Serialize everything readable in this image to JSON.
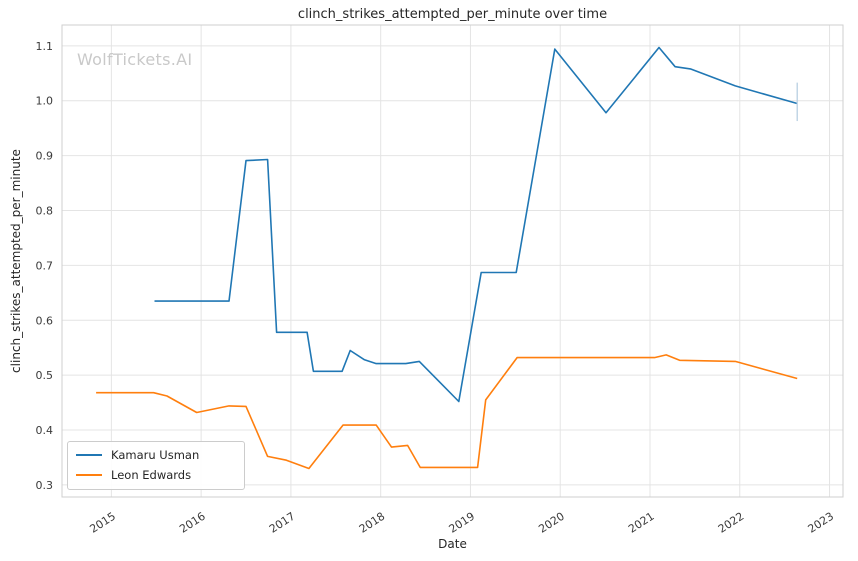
{
  "watermark": "WolfTickets.AI",
  "chart_data": {
    "type": "line",
    "title": "clinch_strikes_attempted_per_minute over time",
    "xlabel": "Date",
    "ylabel": "clinch_strikes_attempted_per_minute",
    "xlim": [
      2014.45,
      2023.15
    ],
    "ylim": [
      0.278,
      1.138
    ],
    "xticks": [
      2015,
      2016,
      2017,
      2018,
      2019,
      2020,
      2021,
      2022,
      2023
    ],
    "yticks": [
      0.3,
      0.4,
      0.5,
      0.6,
      0.7,
      0.8,
      0.9,
      1.0,
      1.1
    ],
    "grid": true,
    "grid_color": "#e4e4e4",
    "border_color": "#cfcfcf",
    "legend_position": "lower left",
    "series": [
      {
        "name": "Kamaru Usman",
        "color": "#2077b4",
        "points": [
          [
            2015.48,
            0.635
          ],
          [
            2016.31,
            0.635
          ],
          [
            2016.5,
            0.891
          ],
          [
            2016.74,
            0.893
          ],
          [
            2016.84,
            0.578
          ],
          [
            2017.18,
            0.578
          ],
          [
            2017.25,
            0.507
          ],
          [
            2017.57,
            0.507
          ],
          [
            2017.66,
            0.545
          ],
          [
            2017.82,
            0.528
          ],
          [
            2017.95,
            0.521
          ],
          [
            2018.28,
            0.521
          ],
          [
            2018.43,
            0.525
          ],
          [
            2018.87,
            0.452
          ],
          [
            2019.12,
            0.687
          ],
          [
            2019.51,
            0.687
          ],
          [
            2019.94,
            1.094
          ],
          [
            2020.51,
            0.978
          ],
          [
            2021.1,
            1.097
          ],
          [
            2021.28,
            1.062
          ],
          [
            2021.45,
            1.058
          ],
          [
            2021.95,
            1.027
          ],
          [
            2022.64,
            0.995
          ]
        ]
      },
      {
        "name": "Leon Edwards",
        "color": "#ff7f0e",
        "points": [
          [
            2014.83,
            0.468
          ],
          [
            2015.47,
            0.468
          ],
          [
            2015.62,
            0.462
          ],
          [
            2015.95,
            0.432
          ],
          [
            2016.31,
            0.444
          ],
          [
            2016.5,
            0.443
          ],
          [
            2016.74,
            0.352
          ],
          [
            2016.95,
            0.345
          ],
          [
            2017.2,
            0.33
          ],
          [
            2017.58,
            0.409
          ],
          [
            2017.95,
            0.409
          ],
          [
            2018.12,
            0.369
          ],
          [
            2018.3,
            0.372
          ],
          [
            2018.44,
            0.332
          ],
          [
            2019.08,
            0.332
          ],
          [
            2019.17,
            0.455
          ],
          [
            2019.52,
            0.532
          ],
          [
            2021.05,
            0.532
          ],
          [
            2021.18,
            0.537
          ],
          [
            2021.33,
            0.527
          ],
          [
            2021.95,
            0.525
          ],
          [
            2022.64,
            0.494
          ]
        ]
      }
    ],
    "end_marker": {
      "x": 2022.64,
      "y1": 0.963,
      "y2": 1.033,
      "color": "#b9cfe3"
    }
  }
}
